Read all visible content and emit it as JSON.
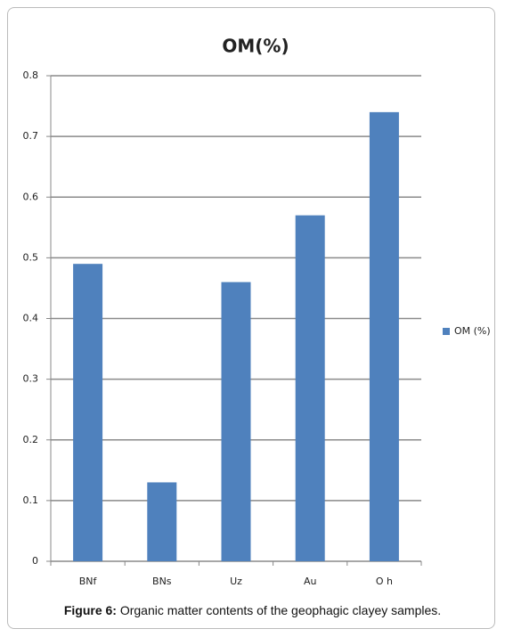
{
  "chart_data": {
    "type": "bar",
    "title": "OM(%)",
    "categories": [
      "BNf",
      "BNs",
      "Uz",
      "Au",
      "O h"
    ],
    "series": [
      {
        "name": "OM (%)",
        "color": "#4f81bd",
        "values": [
          0.49,
          0.13,
          0.46,
          0.57,
          0.74
        ]
      }
    ],
    "ylim": [
      0,
      0.8
    ],
    "yticks": [
      0,
      0.1,
      0.2,
      0.3,
      0.4,
      0.5,
      0.6,
      0.7,
      0.8
    ],
    "grid": true,
    "legend": "right"
  },
  "caption": {
    "label": "Figure 6:",
    "text": "Organic matter contents of the geophagic clayey samples."
  }
}
